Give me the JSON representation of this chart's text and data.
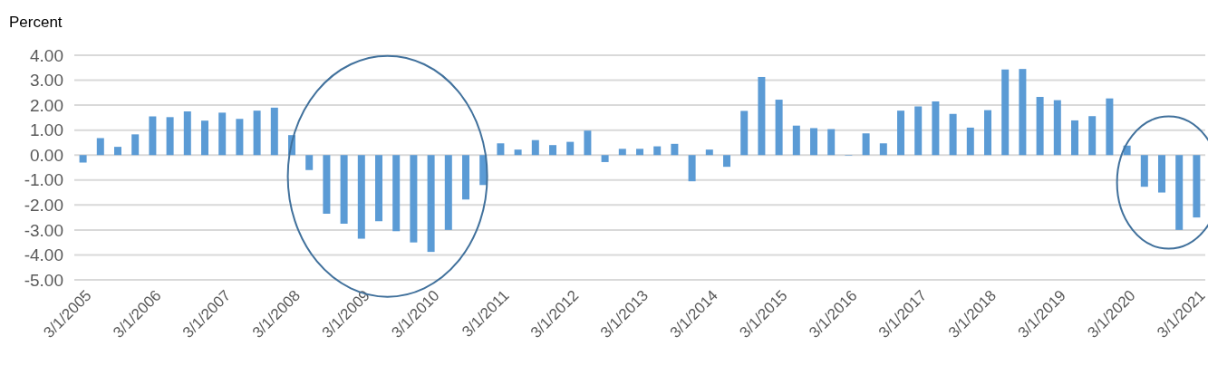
{
  "chart_data": {
    "type": "bar",
    "ylabel": "Percent",
    "categories": [
      "3/1/2005",
      null,
      null,
      null,
      "3/1/2006",
      null,
      null,
      null,
      "3/1/2007",
      null,
      null,
      null,
      "3/1/2008",
      null,
      null,
      null,
      "3/1/2009",
      null,
      null,
      null,
      "3/1/2010",
      null,
      null,
      null,
      "3/1/2011",
      null,
      null,
      null,
      "3/1/2012",
      null,
      null,
      null,
      "3/1/2013",
      null,
      null,
      null,
      "3/1/2014",
      null,
      null,
      null,
      "3/1/2015",
      null,
      null,
      null,
      "3/1/2016",
      null,
      null,
      null,
      "3/1/2017",
      null,
      null,
      null,
      "3/1/2018",
      null,
      null,
      null,
      "3/1/2019",
      null,
      null,
      null,
      "3/1/2020",
      null,
      null,
      null,
      "3/1/2021"
    ],
    "values": [
      -0.3,
      0.68,
      0.33,
      0.83,
      1.55,
      1.52,
      1.75,
      1.38,
      1.7,
      1.45,
      1.78,
      1.9,
      0.8,
      -0.6,
      -2.35,
      -2.75,
      -3.35,
      -2.65,
      -3.05,
      -3.5,
      -3.88,
      -3.0,
      -1.78,
      -1.2,
      0.47,
      0.22,
      0.6,
      0.4,
      0.53,
      0.98,
      -0.28,
      0.25,
      0.25,
      0.35,
      0.45,
      -1.05,
      0.22,
      -0.47,
      1.77,
      3.13,
      2.22,
      1.18,
      1.08,
      1.04,
      -0.02,
      0.87,
      0.47,
      1.78,
      1.95,
      2.15,
      1.65,
      1.1,
      1.8,
      3.43,
      3.45,
      2.33,
      2.2,
      1.39,
      1.56,
      2.27,
      0.38,
      -1.27,
      -1.5,
      -3.0,
      -2.5
    ],
    "color": "#5b9bd5",
    "ylim": [
      -5,
      4
    ],
    "yticks": [
      {
        "value": -5,
        "label": "-5.00"
      },
      {
        "value": -4,
        "label": "-4.00"
      },
      {
        "value": -3,
        "label": "-3.00"
      },
      {
        "value": -2,
        "label": "-2.00"
      },
      {
        "value": -1,
        "label": "-1.00"
      },
      {
        "value": 0,
        "label": "0.00"
      },
      {
        "value": 1,
        "label": "1.00"
      },
      {
        "value": 2,
        "label": "2.00"
      },
      {
        "value": 3,
        "label": "3.00"
      },
      {
        "value": 4,
        "label": "4.00"
      }
    ],
    "grid": "y"
  }
}
